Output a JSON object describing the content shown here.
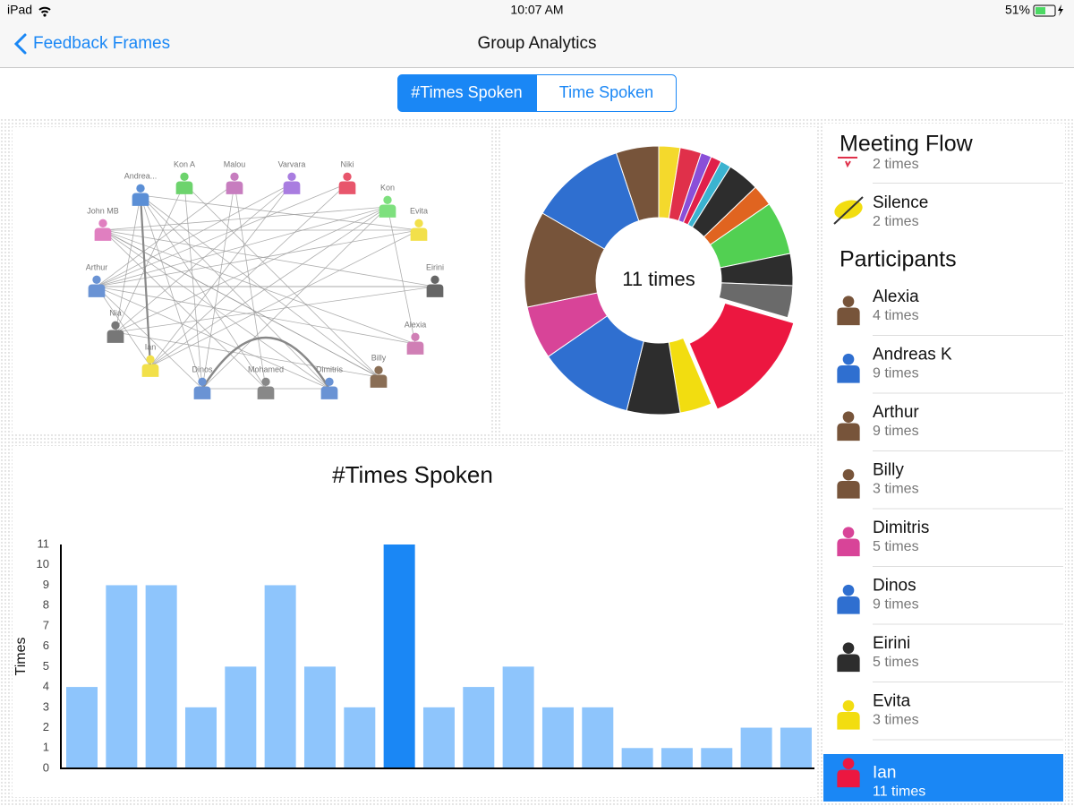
{
  "status_bar": {
    "device": "iPad",
    "time": "10:07 AM",
    "battery": "51%"
  },
  "nav": {
    "back": "Feedback Frames",
    "title": "Group Analytics"
  },
  "segments": [
    {
      "label": "#Times Spoken",
      "selected": true
    },
    {
      "label": "Time Spoken",
      "selected": false
    }
  ],
  "network": {
    "nodes": [
      {
        "label": "Andrea...",
        "color": "#5b8fd6"
      },
      {
        "label": "Kon A",
        "color": "#6dd36d"
      },
      {
        "label": "Malou",
        "color": "#c77dbf"
      },
      {
        "label": "Varvara",
        "color": "#a97de0"
      },
      {
        "label": "Niki",
        "color": "#e8566c"
      },
      {
        "label": "Kon",
        "color": "#7ee07e"
      },
      {
        "label": "Evita",
        "color": "#f2e04a"
      },
      {
        "label": "Eirini",
        "color": "#666666"
      },
      {
        "label": "Alexia",
        "color": "#d07fb5"
      },
      {
        "label": "Billy",
        "color": "#8a6e55"
      },
      {
        "label": "Dimitris",
        "color": "#6a93d4"
      },
      {
        "label": "Mohamed",
        "color": "#888888"
      },
      {
        "label": "Dinos",
        "color": "#6a93d4"
      },
      {
        "label": "Ian",
        "color": "#f2e04a"
      },
      {
        "label": "Nia",
        "color": "#777777"
      },
      {
        "label": "Arthur",
        "color": "#6a93d4"
      },
      {
        "label": "John MB",
        "color": "#e07fc0"
      }
    ]
  },
  "chart_data": [
    {
      "type": "pie",
      "center_label": "11 times",
      "explode": 10,
      "values": [
        2,
        2,
        1,
        1,
        1,
        3,
        2,
        5,
        3,
        3,
        11,
        3,
        5,
        9,
        5,
        9,
        9,
        4
      ],
      "colors": [
        "#f4d92c",
        "#e0304a",
        "#8a4fd8",
        "#e0204a",
        "#3bb3d0",
        "#2d2d2d",
        "#e06420",
        "#52d052",
        "#2d2d2d",
        "#6a6a6a",
        "#ec1740",
        "#f2dd10",
        "#2d2d2d",
        "#2f6fd0",
        "#d84498",
        "#77543a",
        "#2f6fd0",
        "#77543a"
      ]
    },
    {
      "type": "bar",
      "title": "#Times Spoken",
      "y_label": "Times",
      "categories": [
        null,
        null,
        null,
        null,
        null,
        null,
        null,
        null,
        null,
        null,
        null,
        null,
        null,
        null,
        null,
        null,
        null,
        null,
        null
      ],
      "values": [
        4,
        9,
        9,
        3,
        5,
        9,
        5,
        3,
        11,
        3,
        4,
        5,
        3,
        3,
        1,
        1,
        1,
        2,
        2
      ],
      "colors": [
        "#8ec5fc",
        "#8ec5fc",
        "#8ec5fc",
        "#8ec5fc",
        "#8ec5fc",
        "#8ec5fc",
        "#8ec5fc",
        "#8ec5fc",
        "#1a87f5",
        "#8ec5fc",
        "#8ec5fc",
        "#8ec5fc",
        "#8ec5fc",
        "#8ec5fc",
        "#8ec5fc",
        "#8ec5fc",
        "#8ec5fc",
        "#8ec5fc",
        "#8ec5fc"
      ],
      "ylim": [
        0,
        11
      ],
      "yticks": [
        0,
        1,
        2,
        3,
        4,
        5,
        6,
        7,
        8,
        9,
        10,
        11
      ],
      "grid": false
    }
  ],
  "sidebar": {
    "meeting_flow": {
      "title": "Meeting Flow",
      "items": [
        {
          "detail": "2 times"
        },
        {
          "label": "Silence",
          "detail": "2 times"
        }
      ]
    },
    "participants": {
      "title": "Participants",
      "items": [
        {
          "name": "Alexia",
          "detail": "4 times",
          "color": "#77543a"
        },
        {
          "name": "Andreas K",
          "detail": "9 times",
          "color": "#2f6fd0"
        },
        {
          "name": "Arthur",
          "detail": "9 times",
          "color": "#77543a"
        },
        {
          "name": "Billy",
          "detail": "3 times",
          "color": "#77543a"
        },
        {
          "name": "Dimitris",
          "detail": "5 times",
          "color": "#d84498"
        },
        {
          "name": "Dinos",
          "detail": "9 times",
          "color": "#2f6fd0"
        },
        {
          "name": "Eirini",
          "detail": "5 times",
          "color": "#2d2d2d"
        },
        {
          "name": "Evita",
          "detail": "3 times",
          "color": "#f2dd10"
        },
        {
          "name": "Ian",
          "detail": "11 times",
          "color": "#ec1740",
          "selected": true
        }
      ]
    }
  }
}
